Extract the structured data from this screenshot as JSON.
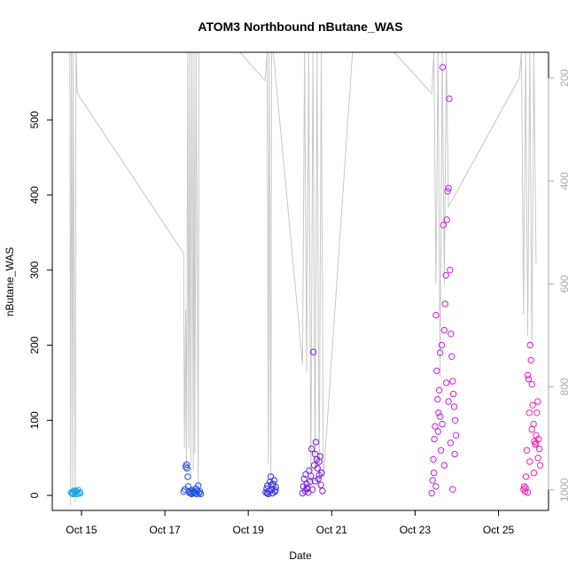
{
  "chart_data": {
    "type": "scatter",
    "title": "ATOM3 Northbound nButane_WAS",
    "xlabel": "Date",
    "ylabel": "nButane_WAS",
    "x_ticks": [
      "Oct 15",
      "Oct 17",
      "Oct 19",
      "Oct 21",
      "Oct 23",
      "Oct 25"
    ],
    "x_tick_days": [
      15,
      17,
      19,
      21,
      23,
      25
    ],
    "xlim_days": [
      14.3,
      26.2
    ],
    "ylim": [
      -20,
      590
    ],
    "y_ticks": [
      0,
      100,
      200,
      300,
      400,
      500
    ],
    "y2_ticks": [
      200,
      400,
      600,
      800,
      1000
    ],
    "y2lim": [
      1040,
      150
    ],
    "grid": false,
    "legend": "none",
    "marker": "open circle",
    "colors": {
      "line": "#c8c8c8",
      "axis": "#000000",
      "right_axis": "#aaaaaa"
    },
    "series": [
      {
        "color": "#1aa3f0",
        "points": [
          [
            14.75,
            4
          ],
          [
            14.8,
            2
          ],
          [
            14.82,
            6
          ],
          [
            14.85,
            3
          ],
          [
            14.88,
            5
          ],
          [
            14.9,
            2
          ],
          [
            14.92,
            7
          ],
          [
            14.95,
            4
          ],
          [
            14.97,
            3
          ],
          [
            14.78,
            3
          ],
          [
            14.86,
            6
          ]
        ]
      },
      {
        "color": "#1f4fe0",
        "points": [
          [
            17.45,
            5
          ],
          [
            17.48,
            8
          ],
          [
            17.5,
            38
          ],
          [
            17.52,
            41
          ],
          [
            17.53,
            36
          ],
          [
            17.55,
            25
          ],
          [
            17.56,
            12
          ],
          [
            17.58,
            4
          ],
          [
            17.6,
            6
          ],
          [
            17.62,
            3
          ],
          [
            17.64,
            2
          ],
          [
            17.66,
            7
          ],
          [
            17.68,
            5
          ],
          [
            17.7,
            3
          ],
          [
            17.72,
            4
          ],
          [
            17.74,
            9
          ],
          [
            17.76,
            2
          ],
          [
            17.78,
            6
          ],
          [
            17.8,
            13
          ],
          [
            17.82,
            3
          ],
          [
            17.84,
            5
          ],
          [
            17.86,
            2
          ]
        ]
      },
      {
        "color": "#3a2fe8",
        "points": [
          [
            19.42,
            4
          ],
          [
            19.44,
            9
          ],
          [
            19.46,
            13
          ],
          [
            19.48,
            2
          ],
          [
            19.5,
            6
          ],
          [
            19.52,
            18
          ],
          [
            19.54,
            25
          ],
          [
            19.56,
            8
          ],
          [
            19.58,
            3
          ],
          [
            19.6,
            15
          ],
          [
            19.62,
            20
          ],
          [
            19.64,
            5
          ],
          [
            19.66,
            11
          ],
          [
            19.45,
            3
          ],
          [
            19.55,
            14
          ],
          [
            19.65,
            7
          ]
        ]
      },
      {
        "color": "#7a1fe8",
        "points": [
          [
            20.3,
            3
          ],
          [
            20.32,
            12
          ],
          [
            20.34,
            22
          ],
          [
            20.36,
            6
          ],
          [
            20.38,
            28
          ],
          [
            20.4,
            15
          ],
          [
            20.42,
            9
          ],
          [
            20.44,
            4
          ],
          [
            20.46,
            33
          ],
          [
            20.48,
            18
          ],
          [
            20.5,
            26
          ],
          [
            20.52,
            62
          ],
          [
            20.54,
            8
          ],
          [
            20.56,
            191
          ],
          [
            20.58,
            40
          ],
          [
            20.6,
            55
          ],
          [
            20.62,
            71
          ],
          [
            20.64,
            48
          ],
          [
            20.66,
            36
          ],
          [
            20.68,
            22
          ],
          [
            20.7,
            45
          ],
          [
            20.72,
            52
          ],
          [
            20.74,
            14
          ],
          [
            20.76,
            30
          ],
          [
            20.78,
            6
          ],
          [
            20.4,
            10
          ],
          [
            20.6,
            19
          ],
          [
            20.7,
            27
          ]
        ]
      },
      {
        "color": "#c81ee8",
        "points": [
          [
            23.4,
            3
          ],
          [
            23.42,
            20
          ],
          [
            23.44,
            48
          ],
          [
            23.46,
            75
          ],
          [
            23.48,
            92
          ],
          [
            23.5,
            240
          ],
          [
            23.52,
            166
          ],
          [
            23.54,
            128
          ],
          [
            23.56,
            110
          ],
          [
            23.58,
            140
          ],
          [
            23.6,
            190
          ],
          [
            23.62,
            60
          ],
          [
            23.64,
            200
          ],
          [
            23.66,
            570
          ],
          [
            23.68,
            360
          ],
          [
            23.7,
            220
          ],
          [
            23.72,
            255
          ],
          [
            23.74,
            293
          ],
          [
            23.76,
            367
          ],
          [
            23.78,
            405
          ],
          [
            23.8,
            409
          ],
          [
            23.82,
            528
          ],
          [
            23.84,
            300
          ],
          [
            23.86,
            215
          ],
          [
            23.88,
            185
          ],
          [
            23.9,
            152
          ],
          [
            23.92,
            135
          ],
          [
            23.94,
            118
          ],
          [
            23.96,
            100
          ],
          [
            23.98,
            80
          ],
          [
            23.45,
            30
          ],
          [
            23.55,
            85
          ],
          [
            23.65,
            95
          ],
          [
            23.75,
            150
          ],
          [
            23.85,
            70
          ],
          [
            23.95,
            55
          ],
          [
            23.5,
            12
          ],
          [
            23.7,
            40
          ],
          [
            23.9,
            8
          ],
          [
            23.6,
            105
          ],
          [
            23.8,
            125
          ]
        ]
      },
      {
        "color": "#f01eb4",
        "points": [
          [
            25.6,
            8
          ],
          [
            25.62,
            12
          ],
          [
            25.64,
            5
          ],
          [
            25.66,
            25
          ],
          [
            25.68,
            60
          ],
          [
            25.7,
            160
          ],
          [
            25.72,
            155
          ],
          [
            25.74,
            110
          ],
          [
            25.76,
            200
          ],
          [
            25.78,
            180
          ],
          [
            25.8,
            148
          ],
          [
            25.82,
            120
          ],
          [
            25.84,
            95
          ],
          [
            25.86,
            72
          ],
          [
            25.88,
            68
          ],
          [
            25.9,
            80
          ],
          [
            25.92,
            110
          ],
          [
            25.94,
            125
          ],
          [
            25.96,
            75
          ],
          [
            25.98,
            62
          ],
          [
            26.0,
            40
          ],
          [
            25.65,
            10
          ],
          [
            25.75,
            45
          ],
          [
            25.85,
            30
          ],
          [
            25.95,
            50
          ],
          [
            25.7,
            4
          ],
          [
            25.8,
            88
          ],
          [
            25.9,
            70
          ]
        ]
      }
    ]
  }
}
